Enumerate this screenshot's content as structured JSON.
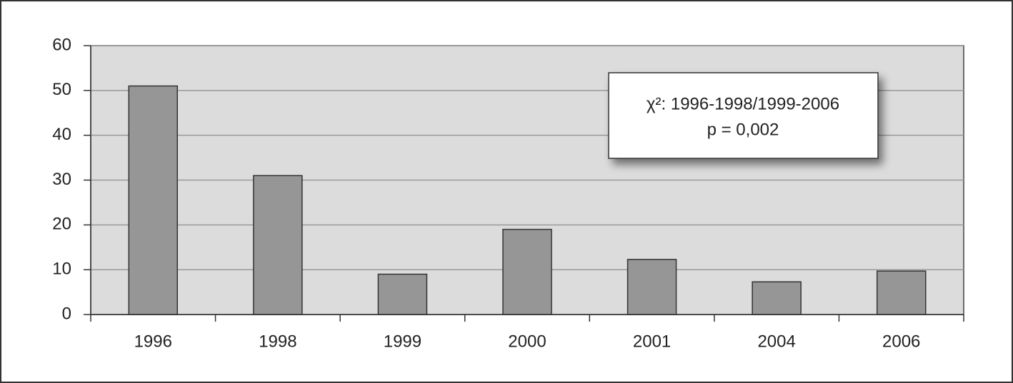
{
  "chart_data": {
    "type": "bar",
    "categories": [
      "1996",
      "1998",
      "1999",
      "2000",
      "2001",
      "2004",
      "2006"
    ],
    "values": [
      51,
      31,
      9,
      19,
      12.3,
      7.3,
      9.7
    ],
    "color": "#969696",
    "ylim": [
      0,
      60
    ],
    "yticks": [
      0,
      10,
      20,
      30,
      40,
      50,
      60
    ],
    "grid": true,
    "annotations": [
      "χ²: 1996-1998/1999-2006",
      "p = 0,002"
    ]
  }
}
